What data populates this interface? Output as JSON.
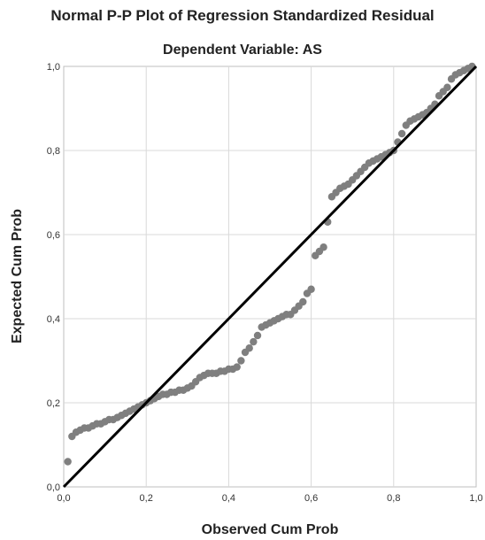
{
  "chart_data": {
    "type": "scatter",
    "title": "Normal P-P Plot of Regression Standardized Residual",
    "subtitle": "Dependent Variable: AS",
    "xlabel": "Observed Cum Prob",
    "ylabel": "Expected Cum Prob",
    "xlim": [
      0,
      1
    ],
    "ylim": [
      0,
      1
    ],
    "xticks": [
      "0,0",
      "0,2",
      "0,4",
      "0,6",
      "0,8",
      "1,0"
    ],
    "yticks": [
      "0,0",
      "0,2",
      "0,4",
      "0,6",
      "0,8",
      "1,0"
    ],
    "grid": true,
    "reference_line": [
      [
        0,
        0
      ],
      [
        1,
        1
      ]
    ],
    "colors": {
      "points": "#7f7f7f",
      "line": "#000000",
      "grid": "#d9d9d9"
    },
    "points": [
      [
        0.01,
        0.06
      ],
      [
        0.02,
        0.12
      ],
      [
        0.03,
        0.13
      ],
      [
        0.04,
        0.135
      ],
      [
        0.05,
        0.14
      ],
      [
        0.06,
        0.14
      ],
      [
        0.07,
        0.145
      ],
      [
        0.08,
        0.15
      ],
      [
        0.09,
        0.15
      ],
      [
        0.1,
        0.155
      ],
      [
        0.11,
        0.16
      ],
      [
        0.12,
        0.16
      ],
      [
        0.13,
        0.165
      ],
      [
        0.14,
        0.17
      ],
      [
        0.15,
        0.175
      ],
      [
        0.16,
        0.18
      ],
      [
        0.17,
        0.185
      ],
      [
        0.18,
        0.19
      ],
      [
        0.19,
        0.195
      ],
      [
        0.2,
        0.2
      ],
      [
        0.21,
        0.205
      ],
      [
        0.22,
        0.21
      ],
      [
        0.23,
        0.215
      ],
      [
        0.24,
        0.22
      ],
      [
        0.25,
        0.22
      ],
      [
        0.26,
        0.225
      ],
      [
        0.27,
        0.225
      ],
      [
        0.28,
        0.23
      ],
      [
        0.29,
        0.23
      ],
      [
        0.3,
        0.235
      ],
      [
        0.31,
        0.24
      ],
      [
        0.32,
        0.25
      ],
      [
        0.33,
        0.26
      ],
      [
        0.34,
        0.265
      ],
      [
        0.35,
        0.27
      ],
      [
        0.36,
        0.27
      ],
      [
        0.37,
        0.27
      ],
      [
        0.38,
        0.275
      ],
      [
        0.39,
        0.275
      ],
      [
        0.4,
        0.28
      ],
      [
        0.41,
        0.28
      ],
      [
        0.42,
        0.285
      ],
      [
        0.43,
        0.3
      ],
      [
        0.44,
        0.32
      ],
      [
        0.45,
        0.33
      ],
      [
        0.46,
        0.345
      ],
      [
        0.47,
        0.36
      ],
      [
        0.48,
        0.38
      ],
      [
        0.49,
        0.385
      ],
      [
        0.5,
        0.39
      ],
      [
        0.51,
        0.395
      ],
      [
        0.52,
        0.4
      ],
      [
        0.53,
        0.405
      ],
      [
        0.54,
        0.41
      ],
      [
        0.55,
        0.41
      ],
      [
        0.56,
        0.42
      ],
      [
        0.57,
        0.43
      ],
      [
        0.58,
        0.44
      ],
      [
        0.59,
        0.46
      ],
      [
        0.6,
        0.47
      ],
      [
        0.61,
        0.55
      ],
      [
        0.62,
        0.56
      ],
      [
        0.63,
        0.57
      ],
      [
        0.64,
        0.63
      ],
      [
        0.65,
        0.69
      ],
      [
        0.66,
        0.7
      ],
      [
        0.67,
        0.71
      ],
      [
        0.68,
        0.715
      ],
      [
        0.69,
        0.72
      ],
      [
        0.7,
        0.73
      ],
      [
        0.71,
        0.74
      ],
      [
        0.72,
        0.75
      ],
      [
        0.73,
        0.76
      ],
      [
        0.74,
        0.77
      ],
      [
        0.75,
        0.775
      ],
      [
        0.76,
        0.78
      ],
      [
        0.77,
        0.785
      ],
      [
        0.78,
        0.79
      ],
      [
        0.79,
        0.795
      ],
      [
        0.8,
        0.8
      ],
      [
        0.81,
        0.82
      ],
      [
        0.82,
        0.84
      ],
      [
        0.83,
        0.86
      ],
      [
        0.84,
        0.87
      ],
      [
        0.85,
        0.875
      ],
      [
        0.86,
        0.88
      ],
      [
        0.87,
        0.885
      ],
      [
        0.88,
        0.89
      ],
      [
        0.89,
        0.9
      ],
      [
        0.9,
        0.91
      ],
      [
        0.91,
        0.93
      ],
      [
        0.92,
        0.94
      ],
      [
        0.93,
        0.95
      ],
      [
        0.94,
        0.97
      ],
      [
        0.95,
        0.98
      ],
      [
        0.96,
        0.985
      ],
      [
        0.97,
        0.99
      ],
      [
        0.98,
        0.995
      ],
      [
        0.99,
        1.0
      ]
    ]
  }
}
